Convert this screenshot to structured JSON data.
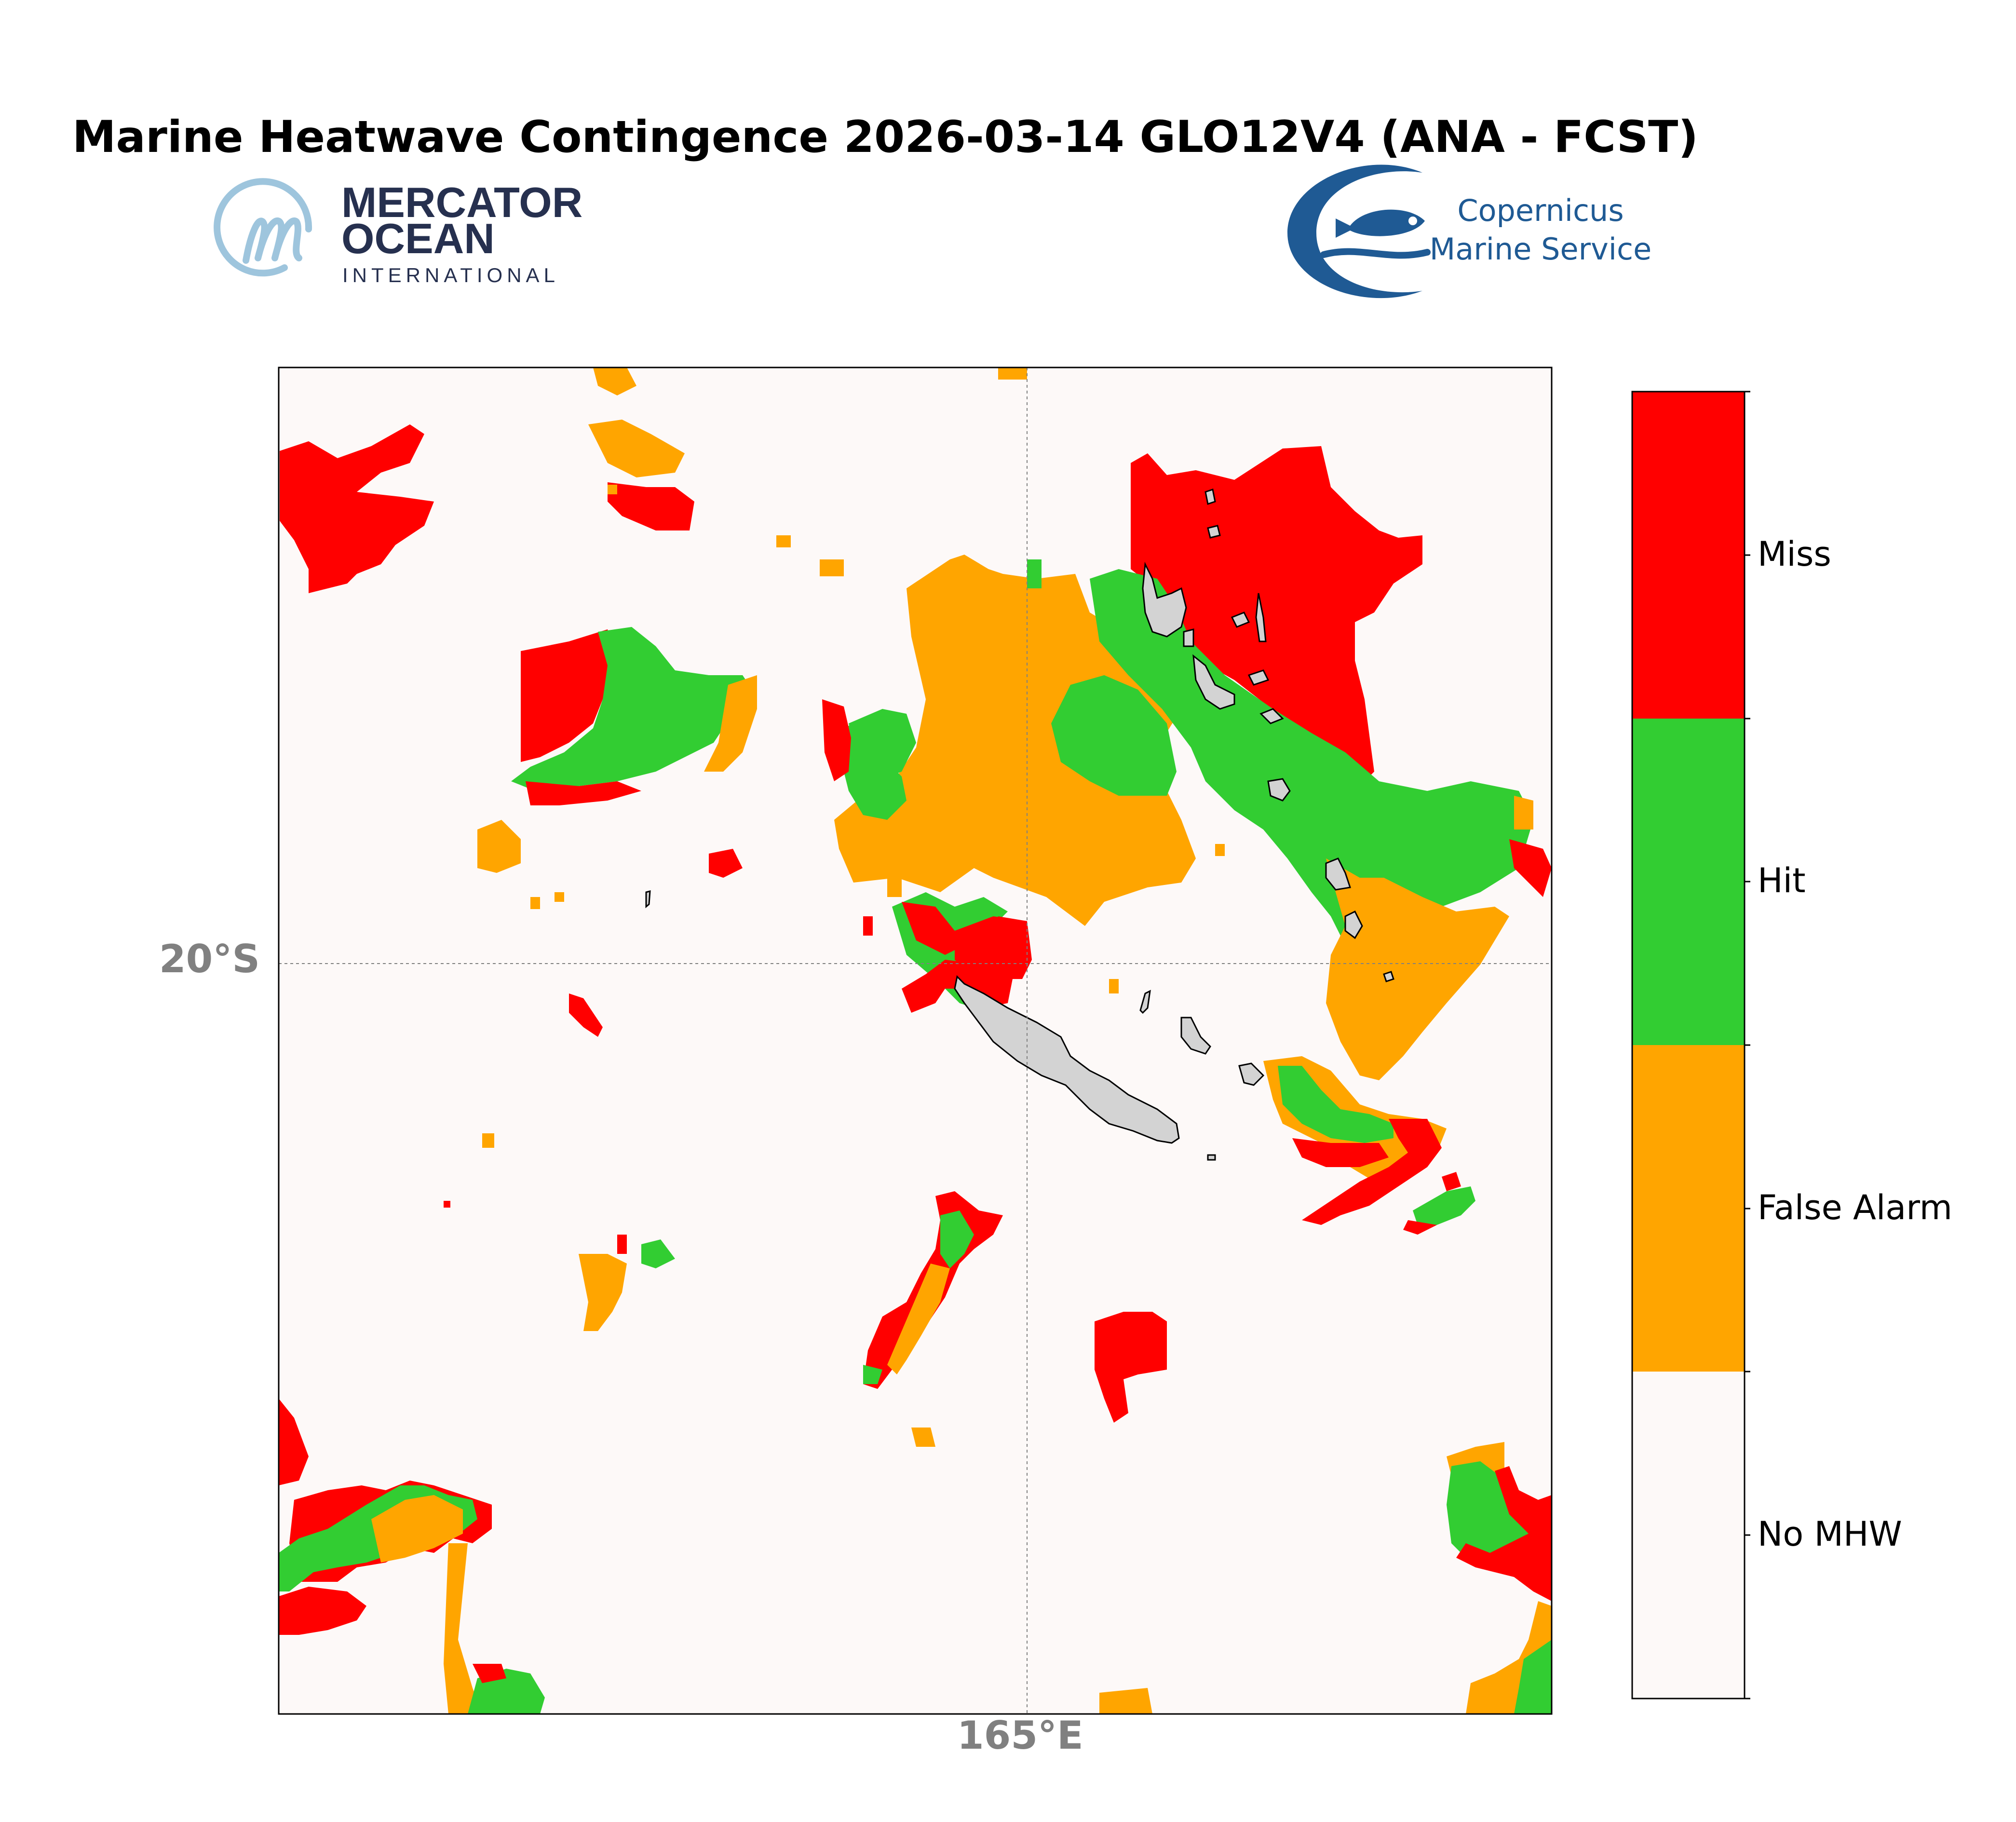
{
  "title": "Marine Heatwave Contingence 2026-03-14 GLO12V4 (ANA - FCST)",
  "logos": {
    "mercator": {
      "line1": "MERCATOR",
      "line2": "OCEAN",
      "line3": "INTERNATIONAL"
    },
    "copernicus": {
      "line1": "Copernicus",
      "line2": "Marine Service"
    }
  },
  "map": {
    "lat_label": "20°S",
    "lon_label": "165°E",
    "ocean_color": "#fdf9f8",
    "land_color": "#d3d3d3",
    "gridlines": true
  },
  "legend": {
    "items": [
      {
        "label": "Miss",
        "color": "#ff0000"
      },
      {
        "label": "Hit",
        "color": "#32cd32"
      },
      {
        "label": "False Alarm",
        "color": "#ffa500"
      },
      {
        "label": "No MHW",
        "color": "#fdf9f8"
      }
    ]
  },
  "icons": {
    "mercator": "mercator-m-logo-icon",
    "copernicus": "fish-crescent-logo-icon"
  }
}
